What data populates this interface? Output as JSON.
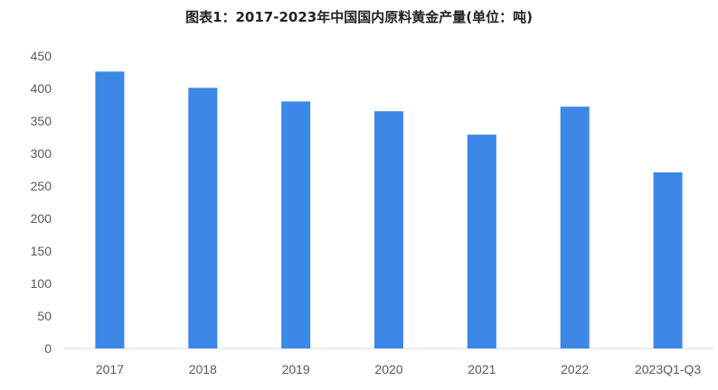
{
  "chart_data": {
    "type": "bar",
    "title": "图表1：2017-2023年中国国内原料黄金产量(单位：吨)",
    "categories": [
      "2017",
      "2018",
      "2019",
      "2020",
      "2021",
      "2022",
      "2023Q1-Q3"
    ],
    "values": [
      426,
      401,
      380,
      365,
      329,
      372,
      271
    ],
    "ylim": [
      0,
      450
    ],
    "yticks": [
      0,
      50,
      100,
      150,
      200,
      250,
      300,
      350,
      400,
      450
    ],
    "xlabel": "",
    "ylabel": "",
    "grid": false,
    "legend": "none",
    "bar_color": "#3d87e6"
  }
}
